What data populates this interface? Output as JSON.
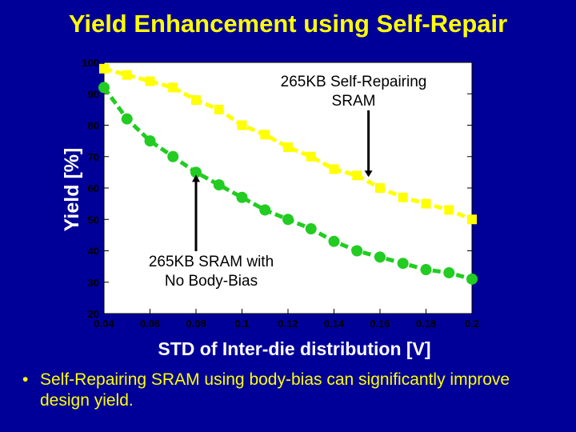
{
  "slide": {
    "title": "Yield Enhancement using Self-Repair",
    "bullet_symbol": "•",
    "bullet": "Self-Repairing SRAM using body-bias can significantly improve design yield."
  },
  "colors": {
    "background": "#000099",
    "text": "#FFFF00",
    "plot_background": "#FFFFFF",
    "series_self_repair": "#FFFF00",
    "series_no_body_bias": "#22CC22"
  },
  "chart_data": {
    "type": "line",
    "xlabel": "STD of Inter-die distribution [V]",
    "ylabel": "Yield [%]",
    "xlim": [
      0.04,
      0.2
    ],
    "ylim": [
      20,
      100
    ],
    "x_ticks": [
      "0.04",
      "0.06",
      "0.08",
      "0.1",
      "0.12",
      "0.14",
      "0.16",
      "0.18",
      "0.2"
    ],
    "y_ticks": [
      "20",
      "30",
      "40",
      "50",
      "60",
      "70",
      "80",
      "90",
      "100"
    ],
    "grid": false,
    "series": [
      {
        "key": "self_repair",
        "marker": "square",
        "x": [
          0.04,
          0.05,
          0.06,
          0.07,
          0.08,
          0.09,
          0.1,
          0.11,
          0.12,
          0.13,
          0.14,
          0.15,
          0.16,
          0.17,
          0.18,
          0.19,
          0.2
        ],
        "y": [
          98,
          96,
          94,
          92,
          88,
          85,
          80,
          77,
          73,
          70,
          66,
          64,
          60,
          57,
          55,
          53,
          50
        ]
      },
      {
        "key": "no_body_bias",
        "marker": "circle",
        "x": [
          0.04,
          0.05,
          0.06,
          0.07,
          0.08,
          0.09,
          0.1,
          0.11,
          0.12,
          0.13,
          0.14,
          0.15,
          0.16,
          0.17,
          0.18,
          0.19,
          0.2
        ],
        "y": [
          92,
          82,
          75,
          70,
          65,
          61,
          57,
          53,
          50,
          47,
          43,
          40,
          38,
          36,
          34,
          33,
          31
        ]
      }
    ],
    "annotations": [
      {
        "key": "self_repair_label",
        "lines": [
          "265KB Self-Repairing",
          "SRAM"
        ],
        "arrow_to": [
          0.155,
          63
        ]
      },
      {
        "key": "no_body_bias_label",
        "lines": [
          "265KB SRAM with",
          "No Body-Bias"
        ],
        "arrow_to": [
          0.08,
          65
        ]
      }
    ]
  }
}
